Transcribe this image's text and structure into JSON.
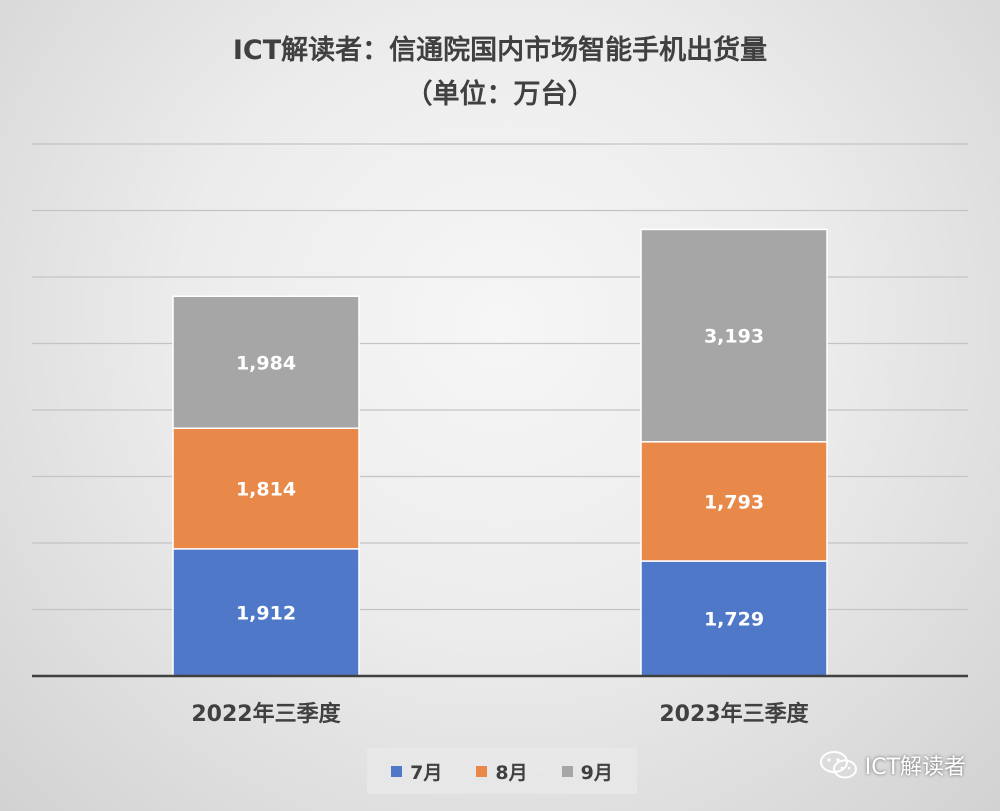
{
  "chart_data": {
    "type": "bar",
    "stacked": true,
    "title": "ICT解读者：信通院国内市场智能手机出货量",
    "subtitle": "（单位：万台）",
    "categories": [
      "2022年三季度",
      "2023年三季度"
    ],
    "series": [
      {
        "name": "7月",
        "color": "#4f78c8",
        "values": [
          1912,
          1729
        ],
        "labels": [
          "1,912",
          "1,729"
        ]
      },
      {
        "name": "8月",
        "color": "#e8894a",
        "values": [
          1814,
          1793
        ],
        "labels": [
          "1,814",
          "1,793"
        ]
      },
      {
        "name": "9月",
        "color": "#a6a6a6",
        "values": [
          1984,
          3193
        ],
        "labels": [
          "1,984",
          "3,193"
        ]
      }
    ],
    "ylim": [
      0,
      8000
    ],
    "gridline_step": 1000,
    "grid": true,
    "y_tick_labels_shown": false,
    "legend_position": "bottom"
  },
  "watermark": {
    "text": "ICT解读者",
    "icon": "wechat-icon"
  }
}
